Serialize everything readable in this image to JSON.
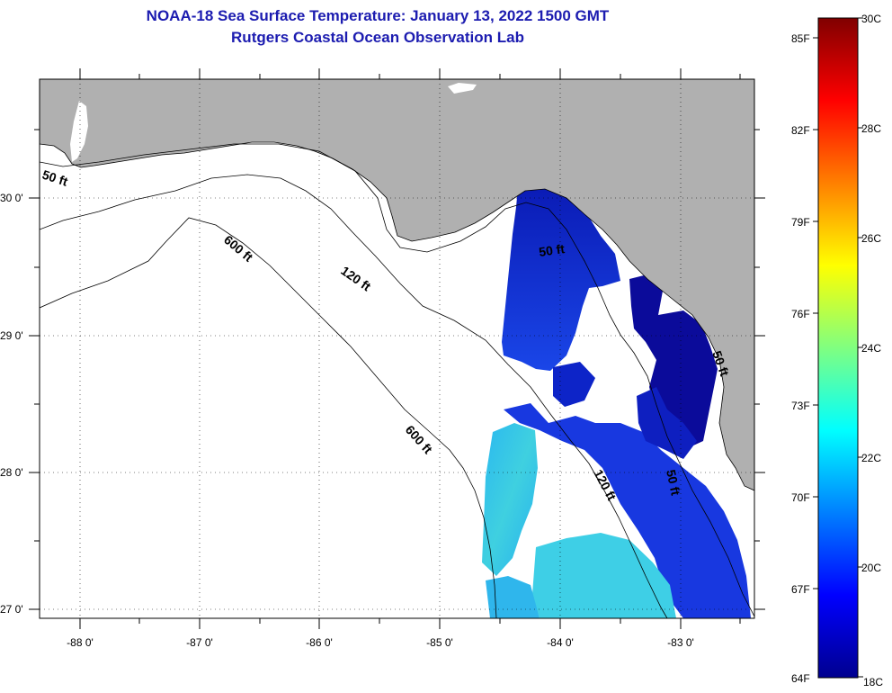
{
  "title": {
    "line1": "NOAA-18 Sea Surface Temperature:  January 13, 2022 1500 GMT",
    "line2": "Rutgers Coastal Ocean Observation Lab"
  },
  "colors": {
    "title": "#1c1cb0",
    "land": "#b0b0b0",
    "water_nodata": "#ffffff",
    "cold": "#0b0b9a"
  },
  "axes": {
    "lon_labels": [
      "-88 0'",
      "-87 0'",
      "-86 0'",
      "-85 0'",
      "-84 0'",
      "-83 0'"
    ],
    "lat_labels": [
      "30 0'",
      "29 0'",
      "28 0'",
      "27 0'"
    ]
  },
  "contours": [
    {
      "id": "50a",
      "label": "50 ft"
    },
    {
      "id": "120a",
      "label": "120 ft"
    },
    {
      "id": "600a",
      "label": "600 ft"
    },
    {
      "id": "600b",
      "label": "600 ft"
    },
    {
      "id": "50b",
      "label": "50 ft"
    },
    {
      "id": "120b",
      "label": "120 ft"
    },
    {
      "id": "50c",
      "label": "50 ft"
    },
    {
      "id": "50d",
      "label": "50 ft"
    }
  ],
  "colorbar": {
    "f_labels": [
      "85F",
      "82F",
      "79F",
      "76F",
      "73F",
      "70F",
      "67F",
      "64F"
    ],
    "c_labels": [
      "30C",
      "28C",
      "26C",
      "24C",
      "22C",
      "20C",
      "18C"
    ]
  }
}
